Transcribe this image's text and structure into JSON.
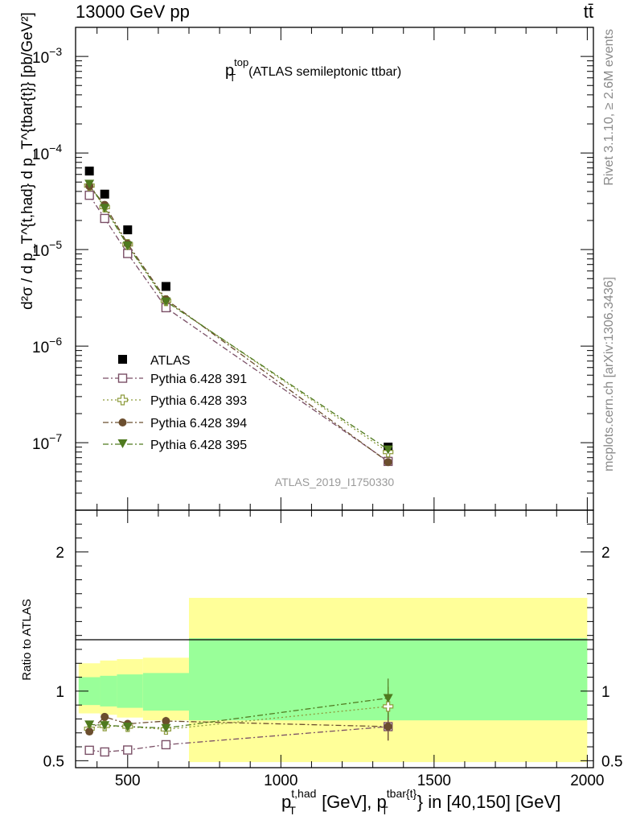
{
  "header": {
    "left": "13000 GeV pp",
    "right": "tt̄"
  },
  "side_labels": {
    "rivet": "Rivet 3.1.10, ≥ 2.6M events",
    "mcplots": "mcplots.cern.ch [arXiv:1306.3436]"
  },
  "chart_data": [
    {
      "type": "scatter",
      "panel": "main",
      "title": "p_T^top (ATLAS semileptonic ttbar)",
      "title_parts": {
        "p": "p",
        "sup": "top",
        "sub": "T",
        "rest": "(ATLAS semileptonic ttbar)"
      },
      "ylabel": "d²σ / d p_T^{t,had} d p_T^{tbar{t}} [pb/GeV²]",
      "yscale": "log",
      "xlim": [
        330,
        2020
      ],
      "ylim": [
        2e-08,
        0.002
      ],
      "y_ticks": [
        {
          "value": 1e-07,
          "base": "10",
          "exp": "−7"
        },
        {
          "value": 1e-06,
          "base": "10",
          "exp": "−6"
        },
        {
          "value": 1e-05,
          "base": "10",
          "exp": "−5"
        },
        {
          "value": 0.0001,
          "base": "10",
          "exp": "−4"
        },
        {
          "value": 0.001,
          "base": "10",
          "exp": "−3"
        }
      ],
      "watermark": "ATLAS_2019_I1750330",
      "legend_position": "lower-left",
      "x": [
        375,
        425,
        500,
        625,
        1350
      ],
      "series": [
        {
          "name": "ATLAS",
          "marker": "square-filled",
          "color": "#000000",
          "values": [
            6.5e-05,
            3.75e-05,
            1.6e-05,
            4.15e-06,
            9e-08
          ]
        },
        {
          "name": "Pythia 6.428 391",
          "marker": "square-open",
          "color": "#7a4f66",
          "dash": "dashdot",
          "values": [
            3.65e-05,
            2.1e-05,
            9.1e-06,
            2.5e-06,
            6.4e-08
          ]
        },
        {
          "name": "Pythia 6.428 393",
          "marker": "cross-open",
          "color": "#8c9a3a",
          "dash": "dotted",
          "values": [
            4.6e-05,
            2.75e-05,
            1.13e-05,
            2.95e-06,
            8e-08
          ]
        },
        {
          "name": "Pythia 6.428 394",
          "marker": "circle-filled",
          "color": "#6b4e2e",
          "dash": "dashdot",
          "values": [
            4.55e-05,
            2.9e-05,
            1.15e-05,
            3.05e-06,
            6.3e-08
          ]
        },
        {
          "name": "Pythia 6.428 395",
          "marker": "triangle-down-filled",
          "color": "#4f7a1f",
          "dash": "dashdot",
          "values": [
            4.8e-05,
            2.7e-05,
            1.1e-05,
            2.9e-06,
            8.5e-08
          ]
        }
      ]
    },
    {
      "type": "scatter",
      "panel": "ratio",
      "ylabel": "Ratio to ATLAS",
      "xlabel": "p_T^{t,had} [GeV], p_T^{tbar{t}} in [40,150] [GeV]",
      "xlabel_parts": {
        "p1": "p",
        "sup1": "t,had",
        "sub1": "T",
        "mid": " [GeV], ",
        "p2": "p",
        "sup2": "tbar{t}",
        "sub2": "T",
        "rest": "} in [40,150] [GeV]"
      },
      "xlim": [
        330,
        2020
      ],
      "ylim": [
        0.45,
        2.3
      ],
      "x_ticks": [
        500,
        1000,
        1500,
        2000
      ],
      "y_ticks_left": [
        0.5,
        1,
        2
      ],
      "y_ticks_right": [
        0.5,
        1,
        2
      ],
      "bands": [
        {
          "x": [
            340,
            410
          ],
          "stat": [
            0.9,
            1.1
          ],
          "total": [
            0.84,
            1.2
          ]
        },
        {
          "x": [
            410,
            465
          ],
          "stat": [
            0.89,
            1.11
          ],
          "total": [
            0.83,
            1.22
          ]
        },
        {
          "x": [
            465,
            550
          ],
          "stat": [
            0.88,
            1.12
          ],
          "total": [
            0.81,
            1.23
          ]
        },
        {
          "x": [
            550,
            700
          ],
          "stat": [
            0.86,
            1.13
          ],
          "total": [
            0.79,
            1.24
          ]
        },
        {
          "x": [
            700,
            2000
          ],
          "stat": [
            0.79,
            1.38
          ],
          "total": [
            0.49,
            1.67
          ]
        }
      ],
      "x": [
        375,
        425,
        500,
        625,
        1350
      ],
      "series": [
        {
          "name": "Pythia 6.428 391",
          "values": [
            0.575,
            0.563,
            0.577,
            0.615,
            0.745
          ],
          "errors": [
            0.02,
            0.02,
            0.02,
            0.03,
            0.1
          ]
        },
        {
          "name": "Pythia 6.428 393",
          "values": [
            0.73,
            0.75,
            0.745,
            0.725,
            0.89
          ],
          "errors": [
            0.02,
            0.02,
            0.02,
            0.03,
            0.14
          ]
        },
        {
          "name": "Pythia 6.428 394",
          "values": [
            0.71,
            0.815,
            0.765,
            0.785,
            0.745
          ],
          "errors": [
            0.02,
            0.02,
            0.02,
            0.03,
            0.1
          ]
        },
        {
          "name": "Pythia 6.428 395",
          "values": [
            0.76,
            0.755,
            0.745,
            0.735,
            0.95
          ],
          "errors": [
            0.02,
            0.02,
            0.02,
            0.03,
            0.14
          ]
        }
      ]
    }
  ]
}
